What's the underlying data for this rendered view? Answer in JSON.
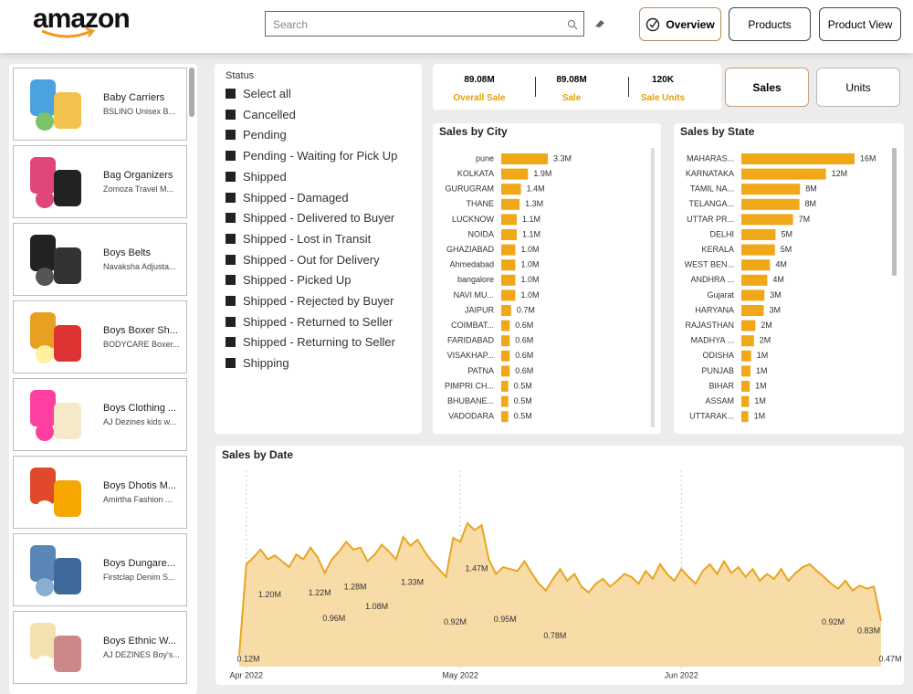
{
  "header": {
    "logo": "amazon",
    "search_placeholder": "Search",
    "nav": [
      "Overview",
      "Products",
      "Product View"
    ]
  },
  "products": [
    {
      "name": "Baby Carriers",
      "description": "BSLINO Unisex B..."
    },
    {
      "name": "Bag Organizers",
      "description": "Zomoza Travel M..."
    },
    {
      "name": "Boys Belts",
      "description": "Navaksha Adjusta..."
    },
    {
      "name": "Boys Boxer Sh...",
      "description": "BODYCARE Boxer..."
    },
    {
      "name": "Boys Clothing ...",
      "description": "AJ Dezines kids w..."
    },
    {
      "name": "Boys Dhotis M...",
      "description": "Amirtha Fashion ..."
    },
    {
      "name": "Boys Dungare...",
      "description": "Firstclap Denim S..."
    },
    {
      "name": "Boys Ethnic W...",
      "description": "AJ DEZINES Boy's..."
    }
  ],
  "status": {
    "title": "Status",
    "options": [
      "Select all",
      "Cancelled",
      "Pending",
      "Pending - Waiting for Pick Up",
      "Shipped",
      "Shipped - Damaged",
      "Shipped - Delivered to Buyer",
      "Shipped - Lost in Transit",
      "Shipped - Out for Delivery",
      "Shipped - Picked Up",
      "Shipped - Rejected by Buyer",
      "Shipped - Returned to Seller",
      "Shipped - Returning to Seller",
      "Shipping"
    ]
  },
  "kpis": [
    {
      "value": "89.08M",
      "label": "Overall Sale"
    },
    {
      "value": "89.08M",
      "label": "Sale"
    },
    {
      "value": "120K",
      "label": "Sale Units"
    }
  ],
  "toggle": [
    "Sales",
    "Units"
  ],
  "chart_data": [
    {
      "type": "bar",
      "orientation": "horizontal",
      "title": "Sales by City",
      "color": "#f0a818",
      "categories": [
        "pune",
        "KOLKATA",
        "GURUGRAM",
        "THANE",
        "LUCKNOW",
        "NOIDA",
        "GHAZIABAD",
        "Ahmedabad",
        "bangalore",
        "NAVI MU...",
        "JAIPUR",
        "COIMBAT...",
        "FARIDABAD",
        "VISAKHAP...",
        "PATNA",
        "PIMPRI CH...",
        "BHUBANE...",
        "VADODARA"
      ],
      "values": [
        3.3,
        1.9,
        1.4,
        1.3,
        1.1,
        1.1,
        1.0,
        1.0,
        1.0,
        1.0,
        0.7,
        0.6,
        0.6,
        0.6,
        0.6,
        0.5,
        0.5,
        0.5
      ],
      "value_labels": [
        "3.3M",
        "1.9M",
        "1.4M",
        "1.3M",
        "1.1M",
        "1.1M",
        "1.0M",
        "1.0M",
        "1.0M",
        "1.0M",
        "0.7M",
        "0.6M",
        "0.6M",
        "0.6M",
        "0.6M",
        "0.5M",
        "0.5M",
        "0.5M"
      ]
    },
    {
      "type": "bar",
      "orientation": "horizontal",
      "title": "Sales by State",
      "color": "#f0a818",
      "categories": [
        "MAHARAS...",
        "KARNATAKA",
        "TAMIL NA...",
        "TELANGA...",
        "UTTAR PR...",
        "DELHI",
        "KERALA",
        "WEST BEN...",
        "ANDHRA ...",
        "Gujarat",
        "HARYANA",
        "RAJASTHAN",
        "MADHYA ...",
        "ODISHA",
        "PUNJAB",
        "BIHAR",
        "ASSAM",
        "UTTARAK..."
      ],
      "values": [
        16.2,
        12.1,
        8.4,
        8.3,
        7.4,
        4.9,
        4.8,
        4.1,
        3.7,
        3.3,
        3.2,
        2.0,
        1.8,
        1.4,
        1.3,
        1.2,
        1.1,
        1.0
      ],
      "value_labels": [
        "16M",
        "12M",
        "8M",
        "8M",
        "7M",
        "5M",
        "5M",
        "4M",
        "4M",
        "3M",
        "3M",
        "2M",
        "2M",
        "1M",
        "1M",
        "1M",
        "1M",
        "1M"
      ]
    },
    {
      "type": "line",
      "title": "Sales by Date",
      "color": "#e8a520",
      "categories": [
        null,
        "Apr 2022",
        null,
        null,
        null,
        null,
        null,
        null,
        null,
        null,
        null,
        null,
        null,
        null,
        null,
        null,
        null,
        null,
        null,
        null,
        null,
        null,
        null,
        null,
        null,
        null,
        null,
        null,
        null,
        null,
        null,
        "May 2022",
        null,
        null,
        null,
        null,
        null,
        null,
        null,
        null,
        null,
        null,
        null,
        null,
        null,
        null,
        null,
        null,
        null,
        null,
        null,
        null,
        null,
        null,
        null,
        null,
        null,
        null,
        null,
        null,
        null,
        null,
        "Jun 2022",
        null,
        null,
        null,
        null,
        null,
        null,
        null,
        null,
        null,
        null,
        null,
        null,
        null,
        null,
        null,
        null,
        null,
        null,
        null,
        null,
        null,
        null,
        null,
        null,
        null,
        null,
        null,
        null
      ],
      "values": [
        0.12,
        1.05,
        1.12,
        1.2,
        1.1,
        1.14,
        1.08,
        1.02,
        1.15,
        1.1,
        1.22,
        1.12,
        0.96,
        1.1,
        1.18,
        1.28,
        1.2,
        1.22,
        1.08,
        1.15,
        1.25,
        1.18,
        1.1,
        1.33,
        1.24,
        1.3,
        1.18,
        1.08,
        1.0,
        0.92,
        1.32,
        1.28,
        1.47,
        1.4,
        1.45,
        1.1,
        0.95,
        1.02,
        1.0,
        0.98,
        1.08,
        0.96,
        0.85,
        0.78,
        0.9,
        1.0,
        0.88,
        0.95,
        0.82,
        0.76,
        0.85,
        0.9,
        0.82,
        0.88,
        0.95,
        0.92,
        0.85,
        0.98,
        0.9,
        1.05,
        0.95,
        0.88,
        1.0,
        0.92,
        0.85,
        0.98,
        1.05,
        0.95,
        1.08,
        0.96,
        1.02,
        0.92,
        1.0,
        0.88,
        0.95,
        0.9,
        1.0,
        0.88,
        0.96,
        1.02,
        1.05,
        0.98,
        0.92,
        0.85,
        0.8,
        0.88,
        0.78,
        0.83,
        0.8,
        0.82,
        0.47
      ],
      "value_labels": [
        "0.12M",
        null,
        null,
        "1.20M",
        null,
        null,
        null,
        null,
        null,
        null,
        "1.22M",
        null,
        "0.96M",
        null,
        null,
        "1.28M",
        null,
        null,
        "1.08M",
        null,
        null,
        null,
        null,
        "1.33M",
        null,
        null,
        null,
        null,
        null,
        "0.92M",
        null,
        null,
        "1.47M",
        null,
        null,
        null,
        "0.95M",
        null,
        null,
        null,
        null,
        null,
        null,
        "0.78M",
        null,
        null,
        null,
        null,
        null,
        null,
        null,
        null,
        null,
        null,
        null,
        null,
        null,
        null,
        null,
        null,
        null,
        null,
        null,
        null,
        null,
        null,
        null,
        null,
        null,
        null,
        null,
        null,
        null,
        null,
        null,
        null,
        null,
        null,
        null,
        null,
        null,
        null,
        "0.92M",
        null,
        null,
        null,
        null,
        "0.83M",
        null,
        null,
        "0.47M"
      ]
    }
  ]
}
